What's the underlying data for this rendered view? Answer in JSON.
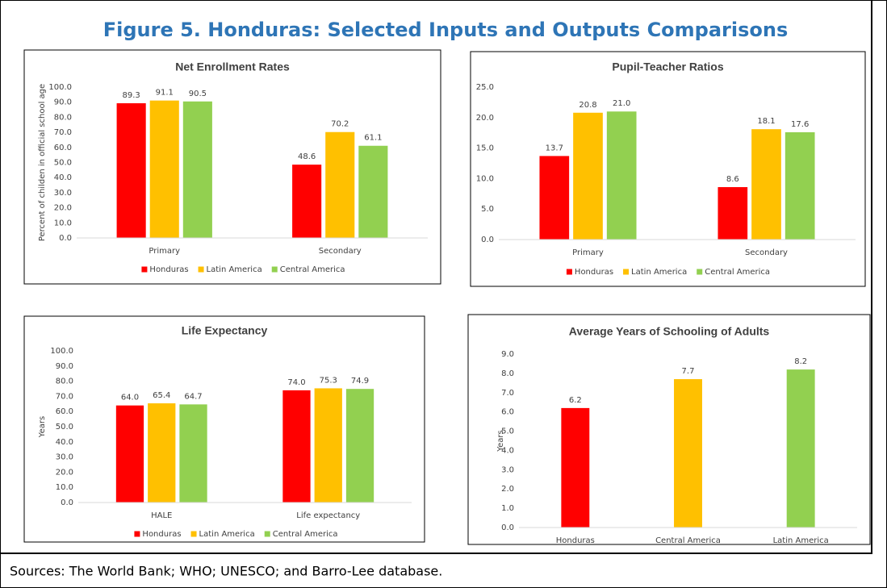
{
  "title": "Figure 5. Honduras: Selected Inputs and Outputs Comparisons",
  "source": "Sources: The World Bank; WHO; UNESCO; and Barro-Lee database.",
  "chart_data": [
    {
      "type": "bar",
      "title": "Net Enrollment Rates",
      "y_label": "Percent of childen in official school age",
      "categories": [
        "Primary",
        "Secondary"
      ],
      "series": [
        {
          "name": "Honduras",
          "color": "#ff0000",
          "values": [
            89.3,
            48.6
          ],
          "value_labels": [
            "89.3",
            "48.6"
          ]
        },
        {
          "name": "Latin America",
          "color": "#ffc000",
          "values": [
            91.1,
            70.2
          ],
          "value_labels": [
            "91.1",
            "70.2"
          ]
        },
        {
          "name": "Central America",
          "color": "#92d050",
          "values": [
            90.5,
            61.1
          ],
          "value_labels": [
            "90.5",
            "61.1"
          ]
        }
      ],
      "ylim": [
        0,
        100
      ],
      "yticks": [
        {
          "value": 0,
          "label": "0.0"
        },
        {
          "value": 10,
          "label": "10.0"
        },
        {
          "value": 20,
          "label": "20.0"
        },
        {
          "value": 30,
          "label": "30.0"
        },
        {
          "value": 40,
          "label": "40.0"
        },
        {
          "value": 50,
          "label": "50.0"
        },
        {
          "value": 60,
          "label": "60.0"
        },
        {
          "value": 70,
          "label": "70.0"
        },
        {
          "value": 80,
          "label": "80.0"
        },
        {
          "value": 90,
          "label": "90.0"
        },
        {
          "value": 100,
          "label": "100.0"
        }
      ],
      "legend": "bottom"
    },
    {
      "type": "bar",
      "title": "Pupil-Teacher Ratios",
      "categories": [
        "Primary",
        "Secondary"
      ],
      "series": [
        {
          "name": "Honduras",
          "color": "#ff0000",
          "values": [
            13.7,
            8.6
          ],
          "value_labels": [
            "13.7",
            "8.6"
          ]
        },
        {
          "name": "Latin America",
          "color": "#ffc000",
          "values": [
            20.8,
            18.1
          ],
          "value_labels": [
            "20.8",
            "18.1"
          ]
        },
        {
          "name": "Central America",
          "color": "#92d050",
          "values": [
            21.0,
            17.6
          ],
          "value_labels": [
            "21.0",
            "17.6"
          ]
        }
      ],
      "ylim": [
        0,
        25
      ],
      "yticks": [
        {
          "value": 0,
          "label": "0.0"
        },
        {
          "value": 5,
          "label": "5.0"
        },
        {
          "value": 10,
          "label": "10.0"
        },
        {
          "value": 15,
          "label": "15.0"
        },
        {
          "value": 20,
          "label": "20.0"
        },
        {
          "value": 25,
          "label": "25.0"
        }
      ],
      "legend": "bottom"
    },
    {
      "type": "bar",
      "title": "Life Expectancy",
      "y_label": "Years",
      "categories": [
        "HALE",
        "Life expectancy"
      ],
      "series": [
        {
          "name": "Honduras",
          "color": "#ff0000",
          "values": [
            64.0,
            74.0
          ],
          "value_labels": [
            "64.0",
            "74.0"
          ]
        },
        {
          "name": "Latin America",
          "color": "#ffc000",
          "values": [
            65.4,
            75.3
          ],
          "value_labels": [
            "65.4",
            "75.3"
          ]
        },
        {
          "name": "Central America",
          "color": "#92d050",
          "values": [
            64.7,
            74.9
          ],
          "value_labels": [
            "64.7",
            "74.9"
          ]
        }
      ],
      "ylim": [
        0,
        100
      ],
      "yticks": [
        {
          "value": 0,
          "label": "0.0"
        },
        {
          "value": 10,
          "label": "10.0"
        },
        {
          "value": 20,
          "label": "20.0"
        },
        {
          "value": 30,
          "label": "30.0"
        },
        {
          "value": 40,
          "label": "40.0"
        },
        {
          "value": 50,
          "label": "50.0"
        },
        {
          "value": 60,
          "label": "60.0"
        },
        {
          "value": 70,
          "label": "70.0"
        },
        {
          "value": 80,
          "label": "80.0"
        },
        {
          "value": 90,
          "label": "90.0"
        },
        {
          "value": 100,
          "label": "100.0"
        }
      ],
      "legend": "bottom"
    },
    {
      "type": "bar",
      "title": "Average Years of Schooling of Adults",
      "y_label": "Years",
      "categories": [
        "Honduras",
        "Central America",
        "Latin America"
      ],
      "values": [
        6.2,
        7.7,
        8.2
      ],
      "value_labels": [
        "6.2",
        "7.7",
        "8.2"
      ],
      "colors": [
        "#ff0000",
        "#ffc000",
        "#92d050"
      ],
      "ylim": [
        0,
        9
      ],
      "yticks": [
        {
          "value": 0,
          "label": "0.0"
        },
        {
          "value": 1,
          "label": "1.0"
        },
        {
          "value": 2,
          "label": "2.0"
        },
        {
          "value": 3,
          "label": "3.0"
        },
        {
          "value": 4,
          "label": "4.0"
        },
        {
          "value": 5,
          "label": "5.0"
        },
        {
          "value": 6,
          "label": "6.0"
        },
        {
          "value": 7,
          "label": "7.0"
        },
        {
          "value": 8,
          "label": "8.0"
        },
        {
          "value": 9,
          "label": "9.0"
        }
      ]
    }
  ]
}
